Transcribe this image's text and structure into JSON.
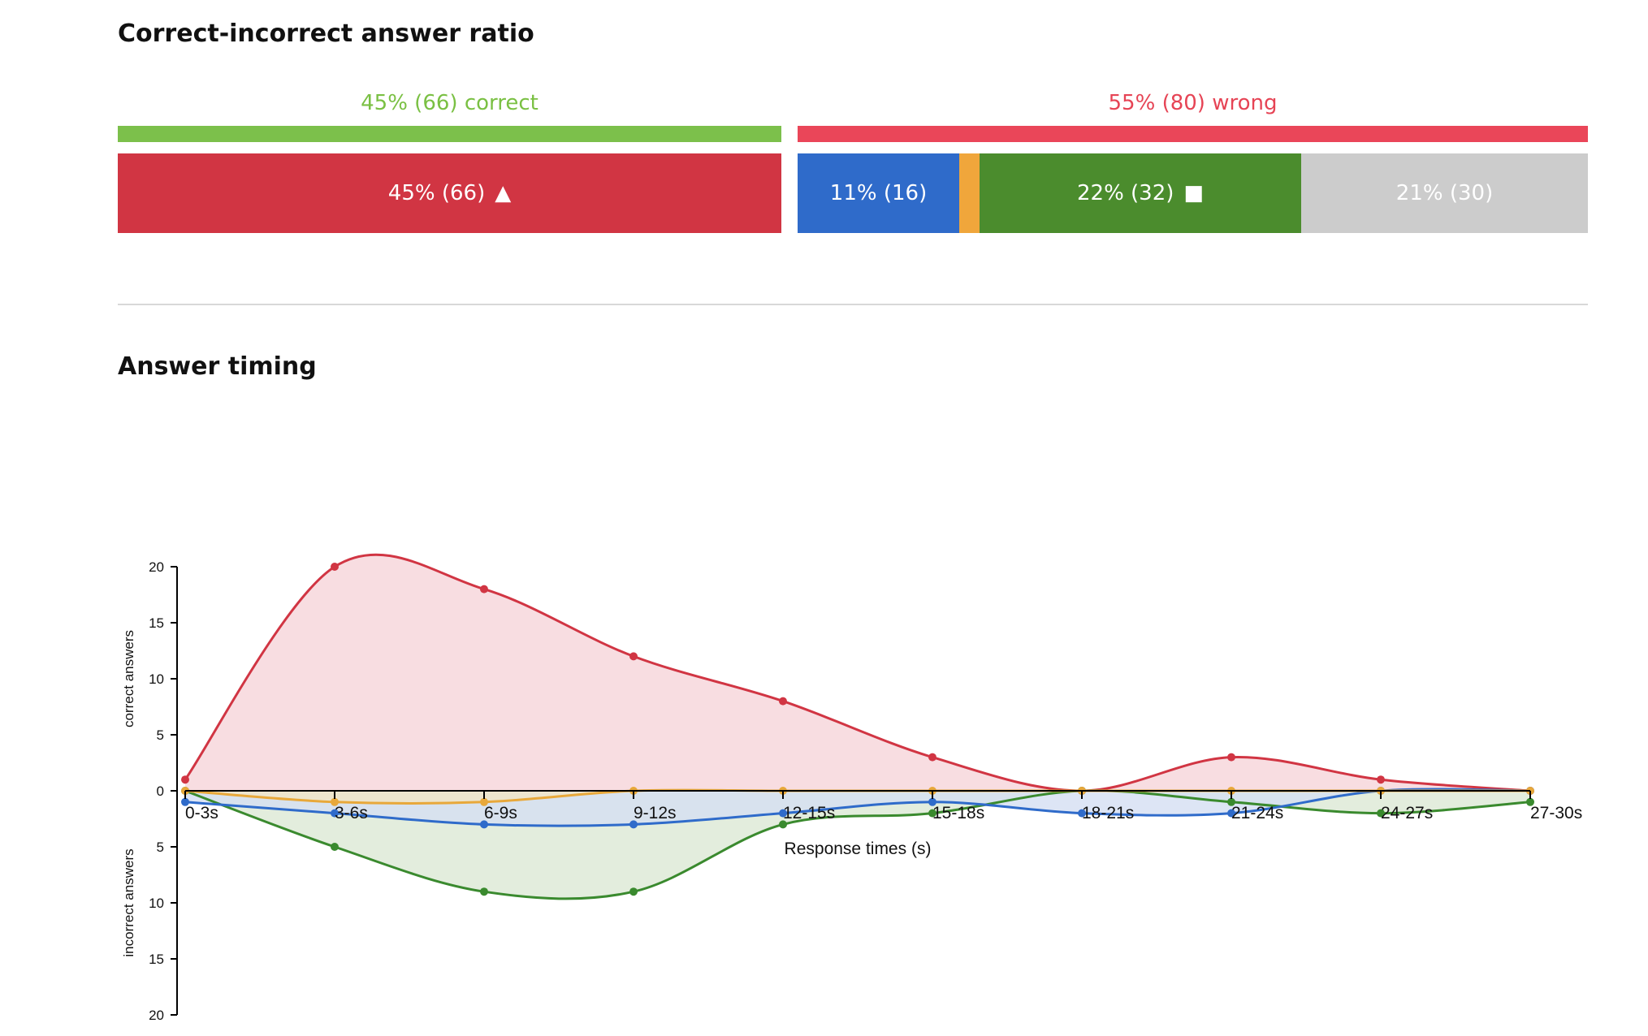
{
  "sections": {
    "ratio_title": "Correct-incorrect answer ratio",
    "timing_title": "Answer timing"
  },
  "ratio": {
    "correct_label": "45% (66) correct",
    "wrong_label": "55% (80) wrong",
    "correct_color": "#7cc04b",
    "wrong_color": "#ea4659",
    "segments": [
      {
        "label": "45% (66)",
        "symbol": "▲",
        "color": "#d13543",
        "share": 45,
        "symbol_name": "triangle-icon"
      },
      {
        "label": "11% (16)",
        "symbol": "",
        "color": "#2f6bca",
        "share": 11,
        "symbol_name": ""
      },
      {
        "label": "",
        "symbol": "",
        "color": "#f0a63b",
        "share": 1.5,
        "symbol_name": ""
      },
      {
        "label": "22% (32)",
        "symbol": "■",
        "color": "#4b8c2d",
        "share": 22,
        "symbol_name": "square-icon"
      },
      {
        "label": "21% (30)",
        "symbol": "",
        "color": "#cccccc",
        "share": 21,
        "symbol_name": ""
      }
    ]
  },
  "chart_data": {
    "type": "area",
    "categories": [
      "0-3s",
      "3-6s",
      "6-9s",
      "9-12s",
      "12-15s",
      "15-18s",
      "18-21s",
      "21-24s",
      "24-27s",
      "27-30s"
    ],
    "xlabel": "Response times (s)",
    "ylabel_top": "correct answers",
    "ylabel_bottom": "incorrect answers",
    "ylim": [
      0,
      20
    ],
    "y_ticks": [
      0,
      5,
      10,
      15,
      20
    ],
    "series": [
      {
        "group": "correct",
        "color": "#d13543",
        "fill": "#f6d5d9",
        "values": [
          1,
          20,
          18,
          12,
          8,
          3,
          0,
          3,
          1,
          0
        ]
      },
      {
        "group": "incorrect",
        "color": "#3a8a2e",
        "fill": "#dce8d4",
        "values": [
          0,
          5,
          9,
          9,
          3,
          2,
          0,
          1,
          2,
          1
        ]
      },
      {
        "group": "incorrect",
        "color": "#2f6bca",
        "fill": "#d4dff2",
        "values": [
          1,
          2,
          3,
          3,
          2,
          1,
          2,
          2,
          0,
          0
        ]
      },
      {
        "group": "incorrect",
        "color": "#e8a83a",
        "fill": "#f3e6c6",
        "values": [
          0,
          1,
          1,
          0,
          0,
          0,
          0,
          0,
          0,
          0
        ]
      }
    ]
  }
}
